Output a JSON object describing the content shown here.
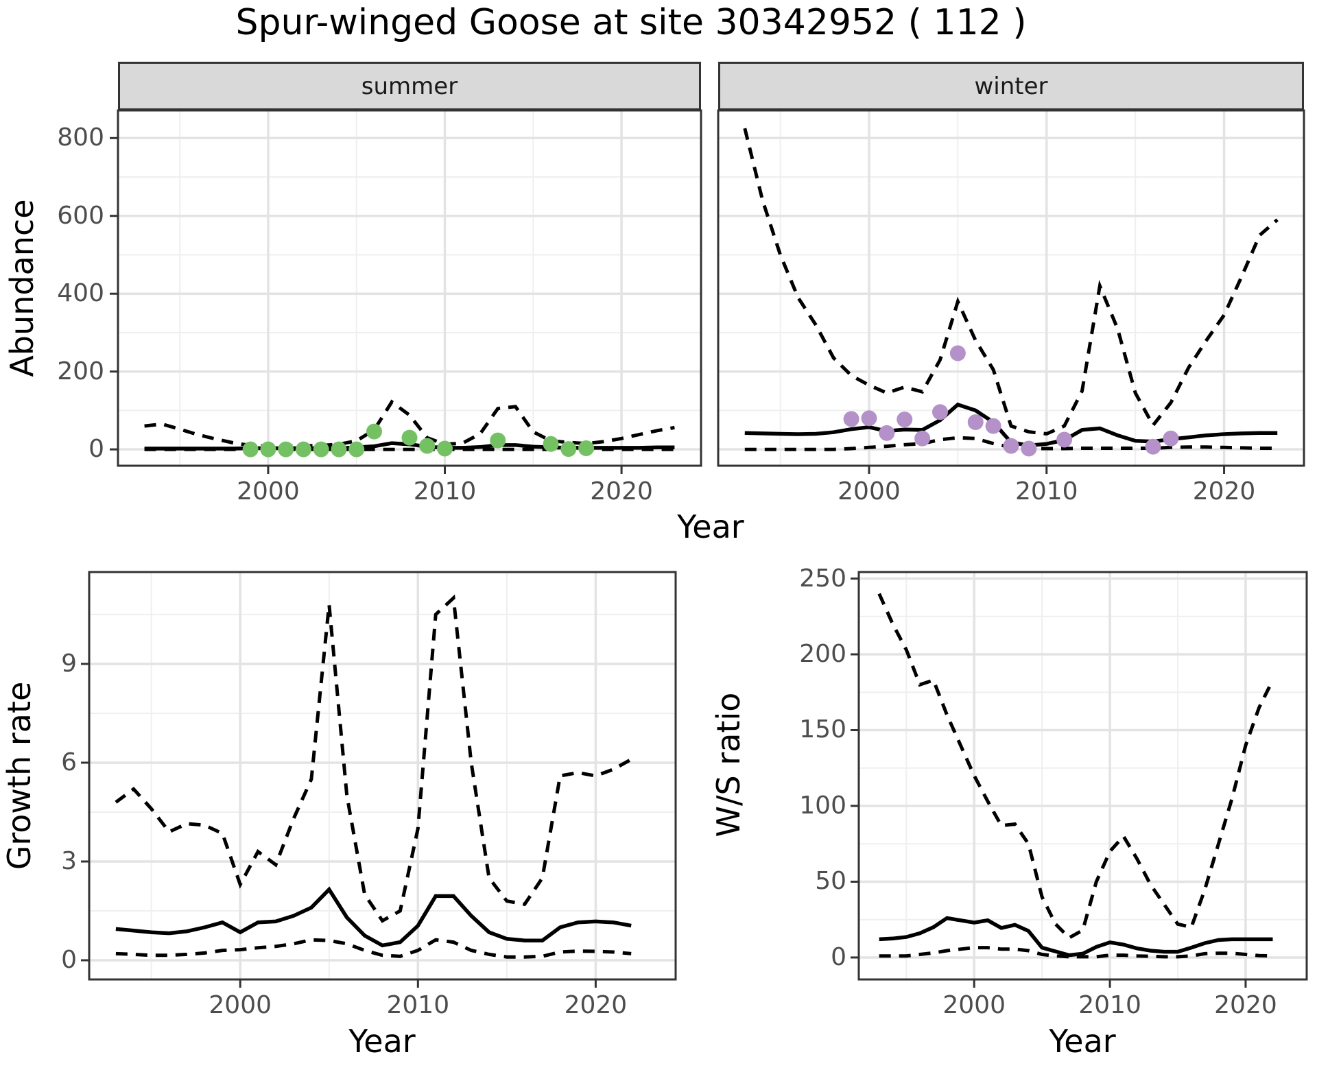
{
  "title": "Spur-winged Goose at site 30342952 ( 112 )",
  "colors": {
    "line": "#000000",
    "grid_major": "#e3e3e3",
    "grid_minor": "#efefef",
    "panel_border": "#333333",
    "strip_background": "#d9d9d9",
    "tick_text": "#4d4d4d",
    "summer_points": "#74c164",
    "winter_points": "#b492c9"
  },
  "chart_data": {
    "type": "line",
    "title": "Spur-winged Goose at site 30342952 ( 112 )",
    "xlabel": "Year",
    "legend": "none",
    "grid": "on",
    "line_styles": {
      "mean": "solid",
      "upper_ci": "dashed",
      "lower_ci": "dashed"
    },
    "panels": [
      {
        "id": "abundance-summer",
        "facet": "summer",
        "ylabel": "Abundance",
        "xlim": [
          1991.5,
          2024.5
        ],
        "ylim": [
          -42,
          871
        ],
        "x_major": [
          2000,
          2010,
          2020
        ],
        "x_minor": [
          1995,
          2005,
          2015
        ],
        "y_major": [
          0,
          200,
          400,
          600,
          800
        ],
        "y_minor": [
          100,
          300,
          500,
          700
        ],
        "years": [
          1993,
          1994,
          1995,
          1996,
          1997,
          1998,
          1999,
          2000,
          2001,
          2002,
          2003,
          2004,
          2005,
          2006,
          2007,
          2008,
          2009,
          2010,
          2011,
          2012,
          2013,
          2014,
          2015,
          2016,
          2017,
          2018,
          2019,
          2020,
          2021,
          2022,
          2023
        ],
        "mean": [
          2,
          2,
          2,
          2,
          2,
          2,
          3,
          3,
          3,
          3,
          3,
          3,
          5,
          8,
          16,
          13,
          7,
          4,
          4,
          6,
          11,
          11,
          7,
          5,
          4,
          4,
          4,
          4,
          4,
          5,
          5
        ],
        "upper_ci": [
          60,
          65,
          52,
          38,
          27,
          17,
          10,
          8,
          8,
          9,
          10,
          13,
          22,
          50,
          122,
          88,
          30,
          13,
          16,
          40,
          105,
          110,
          45,
          22,
          18,
          15,
          20,
          28,
          38,
          48,
          56
        ],
        "lower_ci": [
          0,
          0,
          0,
          0,
          0,
          0,
          0,
          0,
          0,
          0,
          0,
          0,
          0,
          0,
          0,
          0,
          0,
          0,
          0,
          0,
          0,
          0,
          0,
          0,
          0,
          0,
          0,
          0,
          0,
          0,
          0
        ],
        "obs": {
          "years": [
            1999,
            2000,
            2001,
            2002,
            2003,
            2004,
            2005,
            2006,
            2008,
            2009,
            2010,
            2013,
            2016,
            2017,
            2018
          ],
          "values": [
            0,
            0,
            0,
            0,
            0,
            0,
            0,
            46,
            30,
            9,
            2,
            23,
            14,
            1,
            3
          ],
          "color": "#74c164"
        }
      },
      {
        "id": "abundance-winter",
        "facet": "winter",
        "ylabel": "",
        "xlim": [
          1991.5,
          2024.5
        ],
        "ylim": [
          -42,
          871
        ],
        "x_major": [
          2000,
          2010,
          2020
        ],
        "x_minor": [
          1995,
          2005,
          2015
        ],
        "y_major": [
          0,
          200,
          400,
          600,
          800
        ],
        "y_minor": [
          100,
          300,
          500,
          700
        ],
        "years": [
          1993,
          1994,
          1995,
          1996,
          1997,
          1998,
          1999,
          2000,
          2001,
          2002,
          2003,
          2004,
          2005,
          2006,
          2007,
          2008,
          2009,
          2010,
          2011,
          2012,
          2013,
          2014,
          2015,
          2016,
          2017,
          2018,
          2019,
          2020,
          2021,
          2022,
          2023
        ],
        "mean": [
          42,
          41,
          40,
          39,
          40,
          44,
          52,
          57,
          47,
          51,
          50,
          75,
          115,
          100,
          70,
          18,
          10,
          14,
          24,
          50,
          54,
          36,
          22,
          20,
          26,
          31,
          36,
          39,
          41,
          42,
          42
        ],
        "upper_ci": [
          825,
          640,
          500,
          390,
          320,
          235,
          190,
          165,
          145,
          160,
          148,
          230,
          380,
          280,
          205,
          60,
          45,
          40,
          60,
          150,
          420,
          310,
          145,
          62,
          120,
          210,
          280,
          345,
          445,
          550,
          590
        ],
        "lower_ci": [
          0,
          0,
          0,
          0,
          0,
          0,
          2,
          5,
          8,
          12,
          15,
          25,
          30,
          28,
          15,
          5,
          2,
          2,
          2,
          3,
          3,
          3,
          3,
          3,
          5,
          6,
          6,
          5,
          4,
          3,
          3
        ],
        "obs": {
          "years": [
            1999,
            2000,
            2001,
            2002,
            2003,
            2004,
            2005,
            2006,
            2007,
            2008,
            2009,
            2011,
            2016,
            2017
          ],
          "values": [
            78,
            80,
            42,
            77,
            28,
            96,
            247,
            70,
            60,
            9,
            2,
            25,
            7,
            28
          ],
          "color": "#b492c9"
        }
      },
      {
        "id": "growth-rate",
        "facet": "",
        "ylabel": "Growth rate",
        "xlim": [
          1991.5,
          2024.5
        ],
        "ylim": [
          -0.583,
          11.79
        ],
        "x_major": [
          2000,
          2010,
          2020
        ],
        "x_minor": [
          1995,
          2005,
          2015
        ],
        "y_major": [
          0,
          3,
          6,
          9
        ],
        "y_minor": [
          1.5,
          4.5,
          7.5,
          10.5
        ],
        "years": [
          1993,
          1994,
          1995,
          1996,
          1997,
          1998,
          1999,
          2000,
          2001,
          2002,
          2003,
          2004,
          2005,
          2006,
          2007,
          2008,
          2009,
          2010,
          2011,
          2012,
          2013,
          2014,
          2015,
          2016,
          2017,
          2018,
          2019,
          2020,
          2021,
          2022
        ],
        "mean": [
          0.95,
          0.9,
          0.85,
          0.82,
          0.88,
          1.0,
          1.15,
          0.85,
          1.15,
          1.18,
          1.35,
          1.6,
          2.15,
          1.3,
          0.75,
          0.45,
          0.55,
          1.05,
          1.95,
          1.95,
          1.35,
          0.85,
          0.65,
          0.6,
          0.6,
          1.0,
          1.15,
          1.18,
          1.15,
          1.05
        ],
        "upper_ci": [
          4.8,
          5.2,
          4.6,
          3.9,
          4.15,
          4.1,
          3.85,
          2.3,
          3.3,
          2.9,
          4.3,
          5.5,
          10.8,
          5.0,
          2.0,
          1.2,
          1.5,
          4.0,
          10.5,
          11.0,
          6.0,
          2.5,
          1.8,
          1.7,
          2.5,
          5.6,
          5.7,
          5.6,
          5.8,
          6.1
        ],
        "lower_ci": [
          0.2,
          0.18,
          0.15,
          0.15,
          0.18,
          0.22,
          0.3,
          0.32,
          0.38,
          0.42,
          0.5,
          0.62,
          0.6,
          0.5,
          0.3,
          0.15,
          0.12,
          0.3,
          0.62,
          0.55,
          0.3,
          0.18,
          0.1,
          0.1,
          0.12,
          0.25,
          0.28,
          0.27,
          0.25,
          0.2
        ],
        "obs": null
      },
      {
        "id": "ws-ratio",
        "facet": "",
        "ylabel": "W/S ratio",
        "xlim": [
          1991.5,
          2024.5
        ],
        "ylim": [
          -14.5,
          254.3
        ],
        "x_major": [
          2000,
          2010,
          2020
        ],
        "x_minor": [
          1995,
          2005,
          2015
        ],
        "y_major": [
          0,
          50,
          100,
          150,
          200,
          250
        ],
        "y_minor": [
          25,
          75,
          125,
          175,
          225
        ],
        "years": [
          1993,
          1994,
          1995,
          1996,
          1997,
          1998,
          1999,
          2000,
          2001,
          2002,
          2003,
          2004,
          2005,
          2006,
          2007,
          2008,
          2009,
          2010,
          2011,
          2012,
          2013,
          2014,
          2015,
          2016,
          2017,
          2018,
          2019,
          2020,
          2021,
          2022
        ],
        "mean": [
          12,
          12.5,
          13.5,
          16,
          20,
          26,
          24.5,
          23,
          24.5,
          19.5,
          21.5,
          17.5,
          6.5,
          4,
          1.5,
          2.5,
          7,
          10,
          8.5,
          6,
          4.5,
          3.8,
          3.8,
          6.5,
          9.5,
          11.5,
          12,
          12,
          12,
          12
        ],
        "upper_ci": [
          240,
          220,
          203,
          180,
          183,
          160,
          140,
          120,
          103,
          87,
          88,
          75,
          40,
          22,
          13,
          18,
          50,
          70,
          80,
          65,
          48,
          35,
          22,
          20,
          45,
          75,
          105,
          140,
          165,
          183
        ],
        "lower_ci": [
          1,
          1,
          1,
          2,
          3,
          4.5,
          5.5,
          6.5,
          6.5,
          5.5,
          5.5,
          4.5,
          2,
          1,
          0.5,
          0.5,
          0.5,
          1.5,
          1.5,
          1,
          0.8,
          0.5,
          0.5,
          1,
          2.5,
          2.8,
          2.8,
          2,
          1.2,
          1
        ],
        "obs": null
      }
    ]
  }
}
